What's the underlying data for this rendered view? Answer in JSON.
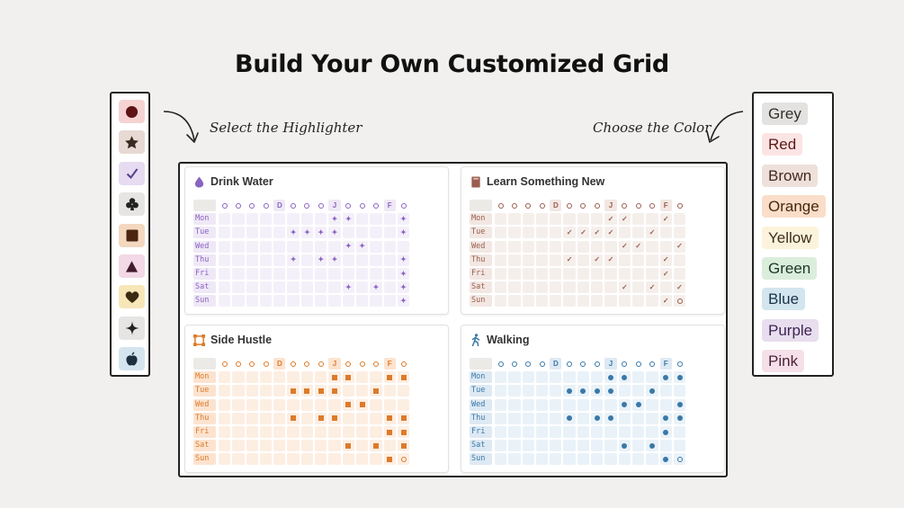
{
  "title": "Build Your Own Customized Grid",
  "annotations": {
    "left": "Select the Highlighter",
    "right": "Choose the Color"
  },
  "highlighters": [
    {
      "icon": "circle-icon",
      "bg": "#f6d3d3",
      "fg": "#5e1414"
    },
    {
      "icon": "star-icon",
      "bg": "#e7d9d3",
      "fg": "#3b2a22"
    },
    {
      "icon": "checkmark-icon",
      "bg": "#e6dbf1",
      "fg": "#5b3d8a"
    },
    {
      "icon": "club-icon",
      "bg": "#e6e5e3",
      "fg": "#222222"
    },
    {
      "icon": "square-icon",
      "bg": "#f3d7bf",
      "fg": "#4a2410"
    },
    {
      "icon": "triangle-icon",
      "bg": "#f3d8e6",
      "fg": "#421a2c"
    },
    {
      "icon": "heart-icon",
      "bg": "#f7e6b8",
      "fg": "#3a2a12"
    },
    {
      "icon": "sparkle-icon",
      "bg": "#e6e5e3",
      "fg": "#222222"
    },
    {
      "icon": "apple-icon",
      "bg": "#d4e5ef",
      "fg": "#1d3040"
    }
  ],
  "colors": [
    {
      "label": "Grey",
      "bg": "#e3e2e0",
      "fg": "#32302c"
    },
    {
      "label": "Red",
      "bg": "#fbe4e4",
      "fg": "#5d1715"
    },
    {
      "label": "Brown",
      "bg": "#eee0da",
      "fg": "#442a1e"
    },
    {
      "label": "Orange",
      "bg": "#fadec9",
      "fg": "#49290e"
    },
    {
      "label": "Yellow",
      "bg": "#fbf3db",
      "fg": "#402c1b"
    },
    {
      "label": "Green",
      "bg": "#dbeddb",
      "fg": "#1c3829"
    },
    {
      "label": "Blue",
      "bg": "#d3e5ef",
      "fg": "#183347"
    },
    {
      "label": "Purple",
      "bg": "#e8deee",
      "fg": "#412454"
    },
    {
      "label": "Pink",
      "bg": "#f5e0e9",
      "fg": "#4c2337"
    }
  ],
  "grids": [
    {
      "title": "Drink Water",
      "icon": "water-drop-icon",
      "accent": "#8a63c2",
      "cell_bg": "#f4f0f9",
      "label_bg": "#efe8f6",
      "mark": "spark",
      "header": [
        "o",
        "o",
        "o",
        "o",
        "D",
        "o",
        "o",
        "o",
        "J",
        "o",
        "o",
        "o",
        "F",
        "o"
      ],
      "days": [
        "Mon",
        "Tue",
        "Wed",
        "Thu",
        "Fri",
        "Sat",
        "Sun"
      ],
      "cells": [
        [
          0,
          0,
          0,
          0,
          0,
          0,
          0,
          0,
          1,
          1,
          0,
          0,
          0,
          1
        ],
        [
          0,
          0,
          0,
          0,
          0,
          1,
          1,
          1,
          1,
          0,
          0,
          0,
          0,
          1
        ],
        [
          0,
          0,
          0,
          0,
          0,
          0,
          0,
          0,
          0,
          1,
          1,
          0,
          0,
          0
        ],
        [
          0,
          0,
          0,
          0,
          0,
          1,
          0,
          1,
          1,
          0,
          0,
          0,
          0,
          1
        ],
        [
          0,
          0,
          0,
          0,
          0,
          0,
          0,
          0,
          0,
          0,
          0,
          0,
          0,
          1
        ],
        [
          0,
          0,
          0,
          0,
          0,
          0,
          0,
          0,
          0,
          1,
          0,
          1,
          0,
          1
        ],
        [
          0,
          0,
          0,
          0,
          0,
          0,
          0,
          0,
          0,
          0,
          0,
          0,
          0,
          1
        ]
      ],
      "last_cell_ring": [
        false,
        false,
        false,
        false,
        false,
        false,
        true
      ]
    },
    {
      "title": "Learn Something New",
      "icon": "book-icon",
      "accent": "#9b5d4e",
      "cell_bg": "#f5efec",
      "label_bg": "#f2e7e3",
      "mark": "check",
      "header": [
        "o",
        "o",
        "o",
        "o",
        "D",
        "o",
        "o",
        "o",
        "J",
        "o",
        "o",
        "o",
        "F",
        "o"
      ],
      "days": [
        "Mon",
        "Tue",
        "Wed",
        "Thu",
        "Fri",
        "Sat",
        "Sun"
      ],
      "cells": [
        [
          0,
          0,
          0,
          0,
          0,
          0,
          0,
          0,
          1,
          1,
          0,
          0,
          1,
          0
        ],
        [
          0,
          0,
          0,
          0,
          0,
          1,
          1,
          1,
          1,
          0,
          0,
          1,
          0,
          0
        ],
        [
          0,
          0,
          0,
          0,
          0,
          0,
          0,
          0,
          0,
          1,
          1,
          0,
          0,
          1
        ],
        [
          0,
          0,
          0,
          0,
          0,
          1,
          0,
          1,
          1,
          0,
          0,
          0,
          1,
          0
        ],
        [
          0,
          0,
          0,
          0,
          0,
          0,
          0,
          0,
          0,
          0,
          0,
          0,
          1,
          0
        ],
        [
          0,
          0,
          0,
          0,
          0,
          0,
          0,
          0,
          0,
          1,
          0,
          1,
          0,
          1
        ],
        [
          0,
          0,
          0,
          0,
          0,
          0,
          0,
          0,
          0,
          0,
          0,
          0,
          1,
          0
        ]
      ],
      "last_cell_ring": [
        false,
        false,
        false,
        false,
        false,
        false,
        true
      ]
    },
    {
      "title": "Side Hustle",
      "icon": "frame-icon",
      "accent": "#dc7b2a",
      "cell_bg": "#fdeee2",
      "label_bg": "#fce3cf",
      "mark": "square",
      "header": [
        "o",
        "o",
        "o",
        "o",
        "D",
        "o",
        "o",
        "o",
        "J",
        "o",
        "o",
        "o",
        "F",
        "o"
      ],
      "days": [
        "Mon",
        "Tue",
        "Wed",
        "Thu",
        "Fri",
        "Sat",
        "Sun"
      ],
      "cells": [
        [
          0,
          0,
          0,
          0,
          0,
          0,
          0,
          0,
          1,
          1,
          0,
          0,
          1,
          1
        ],
        [
          0,
          0,
          0,
          0,
          0,
          1,
          1,
          1,
          1,
          0,
          0,
          1,
          0,
          0
        ],
        [
          0,
          0,
          0,
          0,
          0,
          0,
          0,
          0,
          0,
          1,
          1,
          0,
          0,
          0
        ],
        [
          0,
          0,
          0,
          0,
          0,
          1,
          0,
          1,
          1,
          0,
          0,
          0,
          1,
          1
        ],
        [
          0,
          0,
          0,
          0,
          0,
          0,
          0,
          0,
          0,
          0,
          0,
          0,
          1,
          1
        ],
        [
          0,
          0,
          0,
          0,
          0,
          0,
          0,
          0,
          0,
          1,
          0,
          1,
          0,
          1
        ],
        [
          0,
          0,
          0,
          0,
          0,
          0,
          0,
          0,
          0,
          0,
          0,
          0,
          1,
          0
        ]
      ],
      "last_cell_ring": [
        false,
        false,
        false,
        false,
        false,
        false,
        true
      ]
    },
    {
      "title": "Walking",
      "icon": "walking-person-icon",
      "accent": "#3a78a8",
      "cell_bg": "#e9f2f8",
      "label_bg": "#dde9f3",
      "mark": "dot",
      "header": [
        "o",
        "o",
        "o",
        "o",
        "D",
        "o",
        "o",
        "o",
        "J",
        "o",
        "o",
        "o",
        "F",
        "o"
      ],
      "days": [
        "Mon",
        "Tue",
        "Wed",
        "Thu",
        "Fri",
        "Sat",
        "Sun"
      ],
      "cells": [
        [
          0,
          0,
          0,
          0,
          0,
          0,
          0,
          0,
          1,
          1,
          0,
          0,
          1,
          1
        ],
        [
          0,
          0,
          0,
          0,
          0,
          1,
          1,
          1,
          1,
          0,
          0,
          1,
          0,
          0
        ],
        [
          0,
          0,
          0,
          0,
          0,
          0,
          0,
          0,
          0,
          1,
          1,
          0,
          0,
          1
        ],
        [
          0,
          0,
          0,
          0,
          0,
          1,
          0,
          1,
          1,
          0,
          0,
          0,
          1,
          1
        ],
        [
          0,
          0,
          0,
          0,
          0,
          0,
          0,
          0,
          0,
          0,
          0,
          0,
          1,
          0
        ],
        [
          0,
          0,
          0,
          0,
          0,
          0,
          0,
          0,
          0,
          1,
          0,
          1,
          0,
          0
        ],
        [
          0,
          0,
          0,
          0,
          0,
          0,
          0,
          0,
          0,
          0,
          0,
          0,
          1,
          0
        ]
      ],
      "last_cell_ring": [
        false,
        false,
        false,
        false,
        false,
        false,
        true
      ]
    }
  ]
}
